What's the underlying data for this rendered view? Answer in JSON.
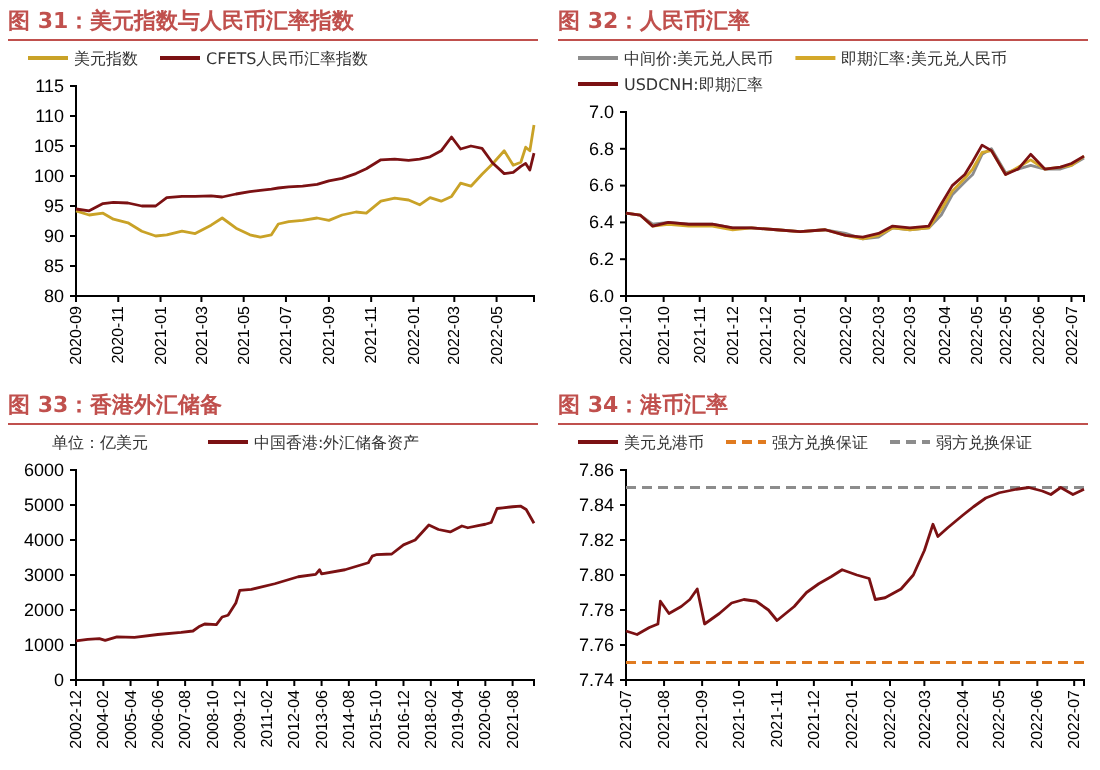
{
  "chart_data": [
    {
      "type": "line",
      "title": "图 31：美元指数与人民币汇率指数",
      "legend": "top",
      "ylim": [
        80,
        115
      ],
      "yticks": [
        80,
        85,
        90,
        95,
        100,
        105,
        110,
        115
      ],
      "xlim": [
        "2020-09-01",
        "2022-06-24"
      ],
      "xticks": [
        {
          "value": "2020-09-01",
          "label": "2020-09"
        },
        {
          "value": "2020-11-01",
          "label": "2020-11"
        },
        {
          "value": "2021-01-01",
          "label": "2021-01"
        },
        {
          "value": "2021-03-01",
          "label": "2021-03"
        },
        {
          "value": "2021-05-01",
          "label": "2021-05"
        },
        {
          "value": "2021-07-01",
          "label": "2021-07"
        },
        {
          "value": "2021-09-01",
          "label": "2021-09"
        },
        {
          "value": "2021-11-01",
          "label": "2021-11"
        },
        {
          "value": "2022-01-01",
          "label": "2022-01"
        },
        {
          "value": "2022-03-01",
          "label": "2022-03"
        },
        {
          "value": "2022-05-01",
          "label": "2022-05"
        }
      ],
      "x": [
        "2020-09-01",
        "2020-09-20",
        "2020-10-10",
        "2020-10-25",
        "2020-11-15",
        "2020-12-05",
        "2020-12-25",
        "2021-01-10",
        "2021-02-01",
        "2021-02-20",
        "2021-03-15",
        "2021-03-31",
        "2021-04-20",
        "2021-05-10",
        "2021-05-25",
        "2021-06-10",
        "2021-06-20",
        "2021-07-05",
        "2021-07-25",
        "2021-08-15",
        "2021-09-01",
        "2021-09-20",
        "2021-10-10",
        "2021-10-25",
        "2021-11-15",
        "2021-12-05",
        "2021-12-25",
        "2022-01-10",
        "2022-01-25",
        "2022-02-10",
        "2022-02-25",
        "2022-03-10",
        "2022-03-25",
        "2022-04-10",
        "2022-04-25",
        "2022-05-12",
        "2022-05-25",
        "2022-06-05",
        "2022-06-12",
        "2022-06-18",
        "2022-06-24"
      ],
      "series": [
        {
          "name": "美元指数",
          "color": "#c9a227",
          "values": [
            94.2,
            93.5,
            93.8,
            92.8,
            92.2,
            90.8,
            90.0,
            90.2,
            90.8,
            90.4,
            91.8,
            93.0,
            91.3,
            90.2,
            89.8,
            90.2,
            92.0,
            92.4,
            92.6,
            93.0,
            92.6,
            93.5,
            94.0,
            93.8,
            95.8,
            96.3,
            96.0,
            95.2,
            96.4,
            95.8,
            96.6,
            98.8,
            98.3,
            100.3,
            102.0,
            104.2,
            101.8,
            102.3,
            104.8,
            104.2,
            108.5
          ]
        },
        {
          "name": "CFETS人民币汇率指数",
          "color": "#7b1113",
          "values": [
            94.5,
            94.2,
            95.4,
            95.6,
            95.5,
            95.0,
            95.0,
            96.4,
            96.6,
            96.6,
            96.7,
            96.5,
            97.0,
            97.4,
            97.6,
            97.8,
            98.0,
            98.2,
            98.3,
            98.6,
            99.2,
            99.6,
            100.4,
            101.2,
            102.7,
            102.8,
            102.6,
            102.8,
            103.2,
            104.2,
            106.5,
            104.5,
            105.0,
            104.6,
            102.2,
            100.4,
            100.6,
            101.6,
            102.1,
            101.0,
            103.8
          ]
        }
      ]
    },
    {
      "type": "line",
      "title": "图 32：人民币汇率",
      "legend": "top",
      "ylim": [
        6.0,
        7.0
      ],
      "yticks": [
        {
          "value": 6.0,
          "label": "6.0"
        },
        6.2,
        6.4,
        6.6,
        6.8,
        {
          "value": 7.0,
          "label": "7.0"
        }
      ],
      "xlim": [
        "2021-10-01",
        "2022-07-20"
      ],
      "xticks": [
        {
          "value": "2021-10-01",
          "label": "2021-10"
        },
        {
          "value": "2021-10-25",
          "label": "2021-10"
        },
        {
          "value": "2021-11-17",
          "label": "2021-11"
        },
        {
          "value": "2021-12-08",
          "label": "2021-12"
        },
        {
          "value": "2021-12-29",
          "label": "2021-12"
        },
        {
          "value": "2022-01-20",
          "label": "2022-01"
        },
        {
          "value": "2022-02-18",
          "label": "2022-02"
        },
        {
          "value": "2022-03-11",
          "label": "2022-03"
        },
        {
          "value": "2022-03-31",
          "label": "2022-03"
        },
        {
          "value": "2022-04-22",
          "label": "2022-04"
        },
        {
          "value": "2022-05-13",
          "label": "2022-05"
        },
        {
          "value": "2022-05-31",
          "label": "2022-05"
        },
        {
          "value": "2022-06-21",
          "label": "2022-06"
        },
        {
          "value": "2022-07-12",
          "label": "2022-07"
        }
      ],
      "x": [
        "2021-10-01",
        "2021-10-10",
        "2021-10-18",
        "2021-10-28",
        "2021-11-10",
        "2021-11-25",
        "2021-12-08",
        "2021-12-20",
        "2022-01-05",
        "2022-01-20",
        "2022-02-05",
        "2022-02-18",
        "2022-03-01",
        "2022-03-11",
        "2022-03-20",
        "2022-03-31",
        "2022-04-12",
        "2022-04-20",
        "2022-04-27",
        "2022-05-05",
        "2022-05-10",
        "2022-05-16",
        "2022-05-22",
        "2022-05-31",
        "2022-06-08",
        "2022-06-16",
        "2022-06-25",
        "2022-07-05",
        "2022-07-12",
        "2022-07-20"
      ],
      "series": [
        {
          "name": "中间价:美元兑人民币",
          "color": "#8c8c8c",
          "values": [
            6.45,
            6.44,
            6.39,
            6.4,
            6.39,
            6.39,
            6.37,
            6.37,
            6.36,
            6.35,
            6.36,
            6.34,
            6.31,
            6.32,
            6.37,
            6.36,
            6.37,
            6.44,
            6.55,
            6.62,
            6.66,
            6.77,
            6.8,
            6.67,
            6.69,
            6.71,
            6.69,
            6.69,
            6.71,
            6.75
          ]
        },
        {
          "name": "即期汇率:美元兑人民币",
          "color": "#d4a82a",
          "values": [
            6.45,
            6.44,
            6.38,
            6.39,
            6.38,
            6.38,
            6.36,
            6.37,
            6.36,
            6.35,
            6.36,
            6.33,
            6.31,
            6.33,
            6.37,
            6.36,
            6.37,
            6.47,
            6.57,
            6.64,
            6.69,
            6.78,
            6.79,
            6.66,
            6.7,
            6.74,
            6.69,
            6.7,
            6.71,
            6.76
          ]
        },
        {
          "name": "USDCNH:即期汇率",
          "color": "#7b1113",
          "values": [
            6.45,
            6.44,
            6.38,
            6.4,
            6.39,
            6.39,
            6.37,
            6.37,
            6.36,
            6.35,
            6.36,
            6.33,
            6.32,
            6.34,
            6.38,
            6.37,
            6.38,
            6.5,
            6.6,
            6.66,
            6.73,
            6.82,
            6.79,
            6.66,
            6.69,
            6.77,
            6.69,
            6.7,
            6.72,
            6.76
          ]
        }
      ]
    },
    {
      "type": "line",
      "title": "图 33：香港外汇储备",
      "legend": "top",
      "annotations": [
        "单位：亿美元"
      ],
      "ylim": [
        0,
        6000
      ],
      "yticks": [
        0,
        1000,
        2000,
        3000,
        4000,
        5000,
        6000
      ],
      "xlim": [
        "2002-12-01",
        "2022-07-01"
      ],
      "xticks": [
        {
          "value": "2002-12-01",
          "label": "2002-12"
        },
        {
          "value": "2004-02-01",
          "label": "2004-02"
        },
        {
          "value": "2005-04-01",
          "label": "2005-04"
        },
        {
          "value": "2006-06-01",
          "label": "2006-06"
        },
        {
          "value": "2007-08-01",
          "label": "2007-08"
        },
        {
          "value": "2008-10-01",
          "label": "2008-10"
        },
        {
          "value": "2009-12-01",
          "label": "2009-12"
        },
        {
          "value": "2011-02-01",
          "label": "2011-02"
        },
        {
          "value": "2012-04-01",
          "label": "2012-04"
        },
        {
          "value": "2013-06-01",
          "label": "2013-06"
        },
        {
          "value": "2014-08-01",
          "label": "2014-08"
        },
        {
          "value": "2015-10-01",
          "label": "2015-10"
        },
        {
          "value": "2016-12-01",
          "label": "2016-12"
        },
        {
          "value": "2018-02-01",
          "label": "2018-02"
        },
        {
          "value": "2019-04-01",
          "label": "2019-04"
        },
        {
          "value": "2020-06-01",
          "label": "2020-06"
        },
        {
          "value": "2021-08-01",
          "label": "2021-08"
        }
      ],
      "x": [
        "2002-12-01",
        "2003-06-01",
        "2003-12-01",
        "2004-03-01",
        "2004-09-01",
        "2005-06-01",
        "2006-06-01",
        "2007-06-01",
        "2007-12-01",
        "2008-03-01",
        "2008-06-01",
        "2008-12-01",
        "2009-03-01",
        "2009-06-01",
        "2009-10-01",
        "2009-12-01",
        "2010-06-01",
        "2011-06-01",
        "2012-06-01",
        "2013-03-01",
        "2013-05-01",
        "2013-06-01",
        "2014-06-01",
        "2015-03-01",
        "2015-06-01",
        "2015-08-01",
        "2015-10-01",
        "2016-06-01",
        "2016-12-01",
        "2017-06-01",
        "2018-01-01",
        "2018-06-01",
        "2018-12-01",
        "2019-06-01",
        "2019-09-01",
        "2020-03-01",
        "2020-06-01",
        "2020-09-01",
        "2020-12-01",
        "2021-03-01",
        "2021-08-01",
        "2021-12-01",
        "2022-03-01",
        "2022-07-01"
      ],
      "series": [
        {
          "name": "中国香港:外汇储备资产",
          "color": "#7b1113",
          "values": [
            1120,
            1160,
            1180,
            1130,
            1230,
            1220,
            1300,
            1360,
            1400,
            1520,
            1600,
            1580,
            1800,
            1850,
            2200,
            2560,
            2590,
            2750,
            2950,
            3020,
            3150,
            3030,
            3150,
            3300,
            3350,
            3540,
            3580,
            3600,
            3860,
            4000,
            4430,
            4300,
            4230,
            4400,
            4350,
            4420,
            4450,
            4500,
            4900,
            4920,
            4950,
            4970,
            4870,
            4480
          ]
        }
      ]
    },
    {
      "type": "line",
      "title": "图 34：港币汇率",
      "legend": "top",
      "ylim": [
        7.74,
        7.86
      ],
      "yticks": [
        7.74,
        7.76,
        7.78,
        {
          "value": 7.8,
          "label": "7.80"
        },
        7.82,
        7.84,
        7.86
      ],
      "xlim": [
        "2021-07-01",
        "2022-07-09"
      ],
      "xticks": [
        {
          "value": "2021-07-01",
          "label": "2021-07"
        },
        {
          "value": "2021-08-01",
          "label": "2021-08"
        },
        {
          "value": "2021-09-01",
          "label": "2021-09"
        },
        {
          "value": "2021-10-01",
          "label": "2021-10"
        },
        {
          "value": "2021-11-01",
          "label": "2021-11"
        },
        {
          "value": "2021-12-01",
          "label": "2021-12"
        },
        {
          "value": "2022-01-01",
          "label": "2022-01"
        },
        {
          "value": "2022-02-01",
          "label": "2022-02"
        },
        {
          "value": "2022-03-01",
          "label": "2022-03"
        },
        {
          "value": "2022-04-01",
          "label": "2022-04"
        },
        {
          "value": "2022-05-01",
          "label": "2022-05"
        },
        {
          "value": "2022-06-01",
          "label": "2022-06"
        },
        {
          "value": "2022-07-01",
          "label": "2022-07"
        }
      ],
      "x": [
        "2021-07-01",
        "2021-07-10",
        "2021-07-20",
        "2021-07-27",
        "2021-07-29",
        "2021-08-05",
        "2021-08-15",
        "2021-08-22",
        "2021-08-28",
        "2021-09-03",
        "2021-09-15",
        "2021-09-25",
        "2021-10-05",
        "2021-10-15",
        "2021-10-25",
        "2021-11-01",
        "2021-11-15",
        "2021-11-25",
        "2021-12-05",
        "2021-12-15",
        "2021-12-24",
        "2022-01-05",
        "2022-01-15",
        "2022-01-20",
        "2022-01-28",
        "2022-02-10",
        "2022-02-20",
        "2022-03-01",
        "2022-03-08",
        "2022-03-12",
        "2022-03-20",
        "2022-04-01",
        "2022-04-10",
        "2022-04-20",
        "2022-05-01",
        "2022-05-15",
        "2022-05-25",
        "2022-06-05",
        "2022-06-12",
        "2022-06-20",
        "2022-06-30",
        "2022-07-09"
      ],
      "series": [
        {
          "name": "美元兑港币",
          "color": "#7b1113",
          "values": [
            7.768,
            7.766,
            7.77,
            7.772,
            7.785,
            7.778,
            7.782,
            7.786,
            7.792,
            7.772,
            7.778,
            7.784,
            7.786,
            7.785,
            7.78,
            7.774,
            7.782,
            7.79,
            7.795,
            7.799,
            7.803,
            7.8,
            7.798,
            7.786,
            7.787,
            7.792,
            7.8,
            7.814,
            7.829,
            7.822,
            7.827,
            7.834,
            7.839,
            7.844,
            7.847,
            7.849,
            7.85,
            7.848,
            7.846,
            7.85,
            7.846,
            7.849
          ]
        }
      ],
      "ref_lines": [
        {
          "axis": "y",
          "value": 7.75,
          "label": "强方兑换保证",
          "color": "#e07b20",
          "line_style": "dashed"
        },
        {
          "axis": "y",
          "value": 7.85,
          "label": "弱方兑换保证",
          "color": "#8c8c8c",
          "line_style": "dashed"
        }
      ]
    }
  ]
}
